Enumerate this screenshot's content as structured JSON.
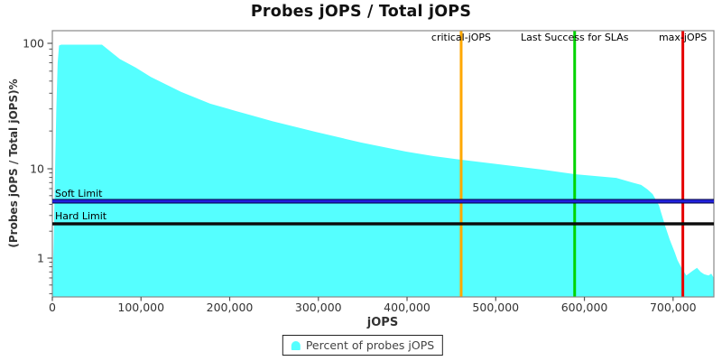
{
  "colors": {
    "series_fill": "#55FFFF",
    "critical_line": "#FFA800",
    "sla_line": "#00D400",
    "max_line": "#E60000",
    "soft_limit_line": "#2222DD",
    "hard_limit_line": "#0B0B0B",
    "plot_border": "#888888",
    "tick": "#555555",
    "tick_label": "#333333",
    "marker_label": "#000000"
  },
  "chart_data": {
    "type": "area",
    "title": "Probes jOPS / Total jOPS",
    "xlabel": "jOPS",
    "ylabel": "(Probes jOPS / Total jOPS)%",
    "x_scale": "linear",
    "y_scale": "log",
    "xlim": [
      0,
      746000
    ],
    "ylim": [
      0.37,
      126
    ],
    "grid": false,
    "x_ticks": [
      {
        "value": 0,
        "label": "0"
      },
      {
        "value": 100000,
        "label": "100,000"
      },
      {
        "value": 200000,
        "label": "200,000"
      },
      {
        "value": 300000,
        "label": "300,000"
      },
      {
        "value": 400000,
        "label": "400,000"
      },
      {
        "value": 500000,
        "label": "500,000"
      },
      {
        "value": 600000,
        "label": "600,000"
      },
      {
        "value": 700000,
        "label": "700,000"
      }
    ],
    "y_ticks": [
      {
        "value": 100,
        "label": "100"
      },
      {
        "value": 10,
        "label": "10"
      },
      {
        "value": 1,
        "label": "1"
      }
    ],
    "series": [
      {
        "name": "Percent of probes jOPS",
        "points": [
          [
            0,
            0.4
          ],
          [
            1500,
            1.5
          ],
          [
            3000,
            8
          ],
          [
            4500,
            30
          ],
          [
            6000,
            70
          ],
          [
            7500,
            96
          ],
          [
            10000,
            97.5
          ],
          [
            56000,
            97.5
          ],
          [
            76000,
            75
          ],
          [
            94000,
            64
          ],
          [
            111000,
            54
          ],
          [
            145000,
            41
          ],
          [
            178000,
            33
          ],
          [
            206000,
            29
          ],
          [
            248000,
            24
          ],
          [
            297000,
            19.7
          ],
          [
            348000,
            16.2
          ],
          [
            399000,
            13.7
          ],
          [
            430000,
            12.6
          ],
          [
            461000,
            11.8
          ],
          [
            501000,
            10.9
          ],
          [
            552000,
            9.8
          ],
          [
            589000,
            8.7
          ],
          [
            636000,
            7.9
          ],
          [
            654000,
            7.0
          ],
          [
            664000,
            6.6
          ],
          [
            671000,
            5.9
          ],
          [
            677000,
            5.2
          ],
          [
            684000,
            3.9
          ],
          [
            691000,
            2.3
          ],
          [
            696000,
            1.63
          ],
          [
            702000,
            1.15
          ],
          [
            705000,
            0.95
          ],
          [
            710000,
            0.76
          ],
          [
            715000,
            0.64
          ],
          [
            722000,
            0.72
          ],
          [
            727000,
            0.78
          ],
          [
            731000,
            0.7
          ],
          [
            735000,
            0.66
          ],
          [
            740000,
            0.64
          ],
          [
            743000,
            0.67
          ],
          [
            746000,
            0.6
          ]
        ]
      }
    ],
    "vertical_markers": [
      {
        "label": "critical-jOPS",
        "value": 461000,
        "color_key": "critical_line"
      },
      {
        "label": "Last Success for SLAs",
        "value": 589000,
        "color_key": "sla_line"
      },
      {
        "label": "max-jOPS",
        "value": 711000,
        "color_key": "max_line"
      }
    ],
    "horizontal_markers": [
      {
        "label": "Soft Limit",
        "value": 4.33,
        "color_key": "soft_limit_line",
        "style": "blue-band"
      },
      {
        "label": "Hard Limit",
        "value": 2.42,
        "color_key": "hard_limit_line",
        "style": "black-band"
      }
    ],
    "legend": {
      "position": "bottom",
      "entries": [
        {
          "label": "Percent of probes jOPS",
          "color_key": "series_fill"
        }
      ]
    }
  }
}
